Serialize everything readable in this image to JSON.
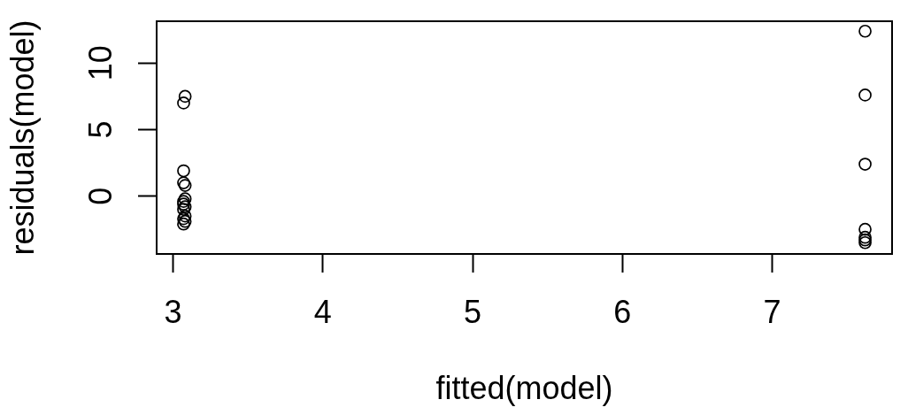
{
  "chart_data": {
    "type": "scatter",
    "xlabel": "fitted(model)",
    "ylabel": "residuals(model)",
    "x": [
      3.08,
      3.07,
      3.07,
      3.07,
      3.08,
      3.08,
      3.07,
      3.07,
      3.08,
      3.07,
      3.08,
      3.07,
      3.08,
      3.07,
      7.62,
      7.62,
      7.62,
      7.62,
      7.62,
      7.62,
      7.62
    ],
    "values": [
      7.5,
      7.0,
      1.9,
      1.0,
      0.8,
      -0.2,
      -0.4,
      -0.6,
      -0.8,
      -1.0,
      -1.5,
      -1.7,
      -1.9,
      -2.1,
      12.4,
      7.6,
      2.4,
      -2.5,
      -3.1,
      -3.3,
      -3.5
    ],
    "color": "#000000",
    "marker": "circle",
    "xlim": [
      2.89,
      7.8
    ],
    "ylim": [
      -4.35,
      13.15
    ],
    "xticks": [
      3,
      4,
      5,
      6,
      7
    ],
    "yticks": [
      0,
      5,
      10
    ],
    "grid": false,
    "legend": false
  }
}
